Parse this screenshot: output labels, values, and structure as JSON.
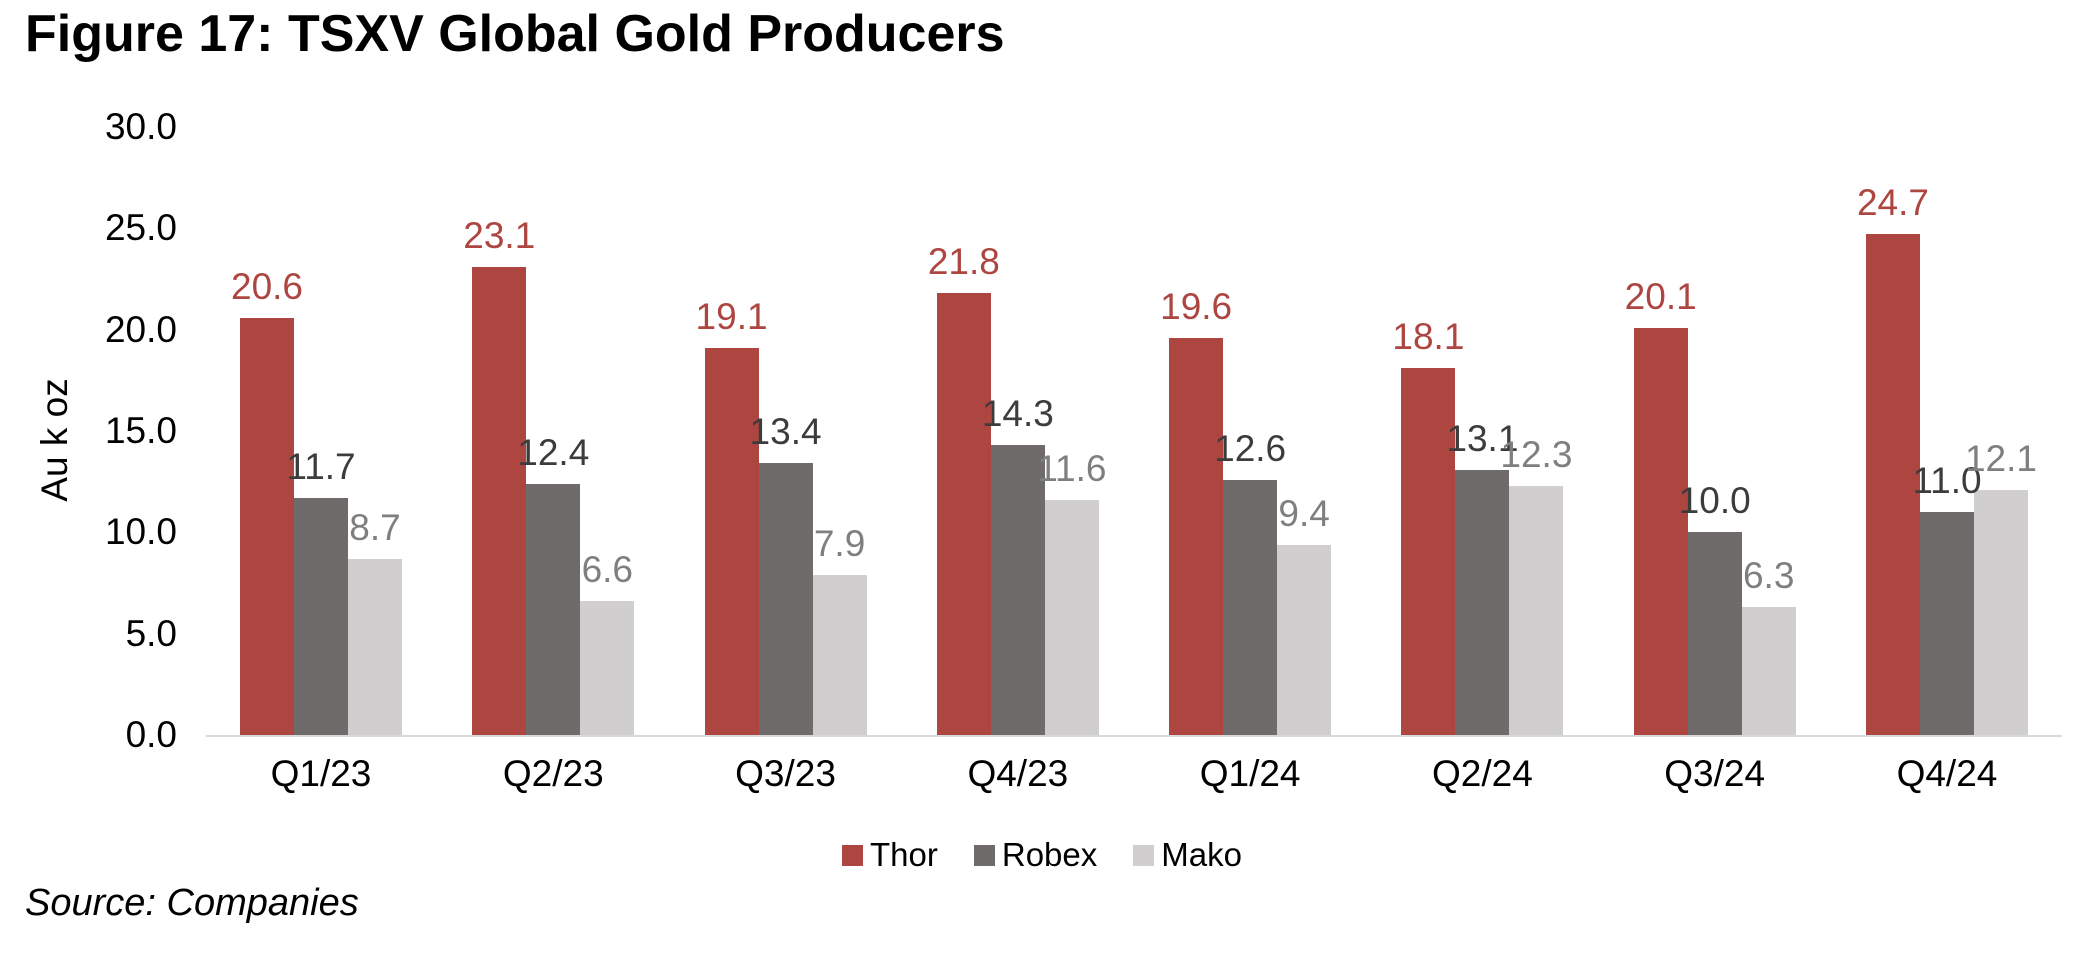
{
  "figure": {
    "title": "Figure 17: TSXV Global Gold Producers",
    "source_note": "Source: Companies"
  },
  "chart_data": {
    "type": "bar",
    "title": "Figure 17: TSXV Global Gold Producers",
    "xlabel": "",
    "ylabel": "Au k oz",
    "ylim": [
      0,
      30
    ],
    "ytick_interval": 5,
    "ytick_labels": [
      "0.0",
      "5.0",
      "10.0",
      "15.0",
      "20.0",
      "25.0",
      "30.0"
    ],
    "grid": false,
    "legend_position": "bottom",
    "value_labels": "outside end, one decimal",
    "categories": [
      "Q1/23",
      "Q2/23",
      "Q3/23",
      "Q4/23",
      "Q1/24",
      "Q2/24",
      "Q3/24",
      "Q4/24"
    ],
    "series": [
      {
        "name": "Thor",
        "color": "#AD4641",
        "label_color": "#AD4641",
        "values": [
          20.6,
          23.1,
          19.1,
          21.8,
          19.6,
          18.1,
          20.1,
          24.7
        ]
      },
      {
        "name": "Robex",
        "color": "#6F6B6A",
        "label_color": "#3C3C3C",
        "values": [
          11.7,
          12.4,
          13.4,
          14.3,
          12.6,
          13.1,
          10.0,
          11.0
        ]
      },
      {
        "name": "Mako",
        "color": "#D0CECE",
        "label_color": "#7F7F7F",
        "values": [
          8.7,
          6.6,
          7.9,
          11.6,
          9.4,
          12.3,
          6.3,
          12.1
        ]
      }
    ]
  },
  "colors": {
    "axis_line": "#D9D9D9",
    "text": "#000000",
    "background": "#FFFFFF"
  }
}
